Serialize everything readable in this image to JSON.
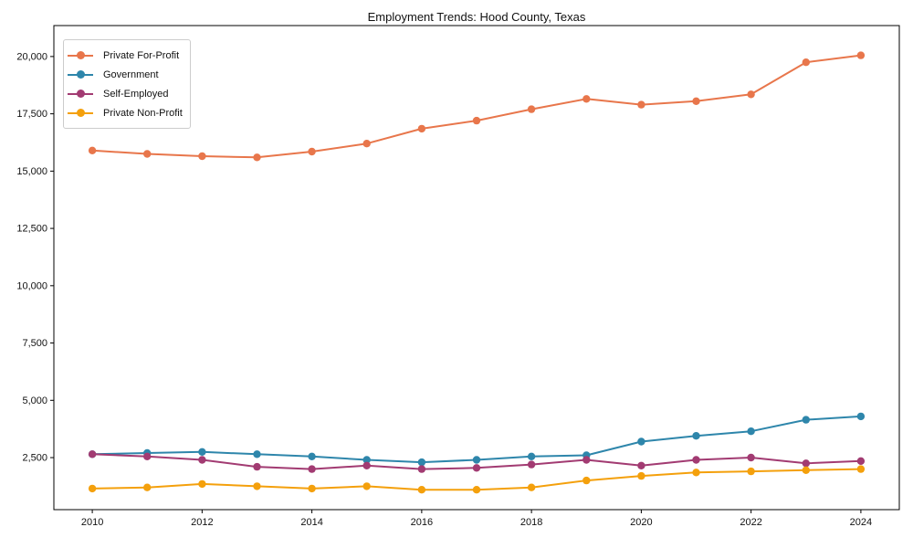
{
  "chart_data": {
    "type": "line",
    "title": "Employment Trends: Hood County, Texas",
    "xlabel": "",
    "ylabel": "",
    "x": [
      2010,
      2011,
      2012,
      2013,
      2014,
      2015,
      2016,
      2017,
      2018,
      2019,
      2020,
      2021,
      2022,
      2023,
      2024
    ],
    "series": [
      {
        "name": "Private For-Profit",
        "color": "#E8764B",
        "values": [
          15900,
          15750,
          15650,
          15600,
          15850,
          16200,
          16850,
          17200,
          17700,
          18150,
          17900,
          18050,
          18350,
          19750,
          20050
        ]
      },
      {
        "name": "Government",
        "color": "#2E86AB",
        "values": [
          2650,
          2700,
          2750,
          2650,
          2550,
          2400,
          2300,
          2400,
          2550,
          2600,
          3200,
          3450,
          3650,
          4150,
          4300
        ]
      },
      {
        "name": "Self-Employed",
        "color": "#A23B72",
        "values": [
          2650,
          2550,
          2400,
          2100,
          2000,
          2150,
          2000,
          2050,
          2200,
          2400,
          2150,
          2400,
          2500,
          2250,
          2350
        ]
      },
      {
        "name": "Private Non-Profit",
        "color": "#F4A00C",
        "values": [
          1150,
          1200,
          1350,
          1250,
          1150,
          1250,
          1100,
          1100,
          1200,
          1500,
          1700,
          1850,
          1900,
          1950,
          2000
        ]
      }
    ],
    "xticks": [
      2010,
      2012,
      2014,
      2016,
      2018,
      2020,
      2022,
      2024
    ],
    "yticks": [
      2500,
      5000,
      7500,
      10000,
      12500,
      15000,
      17500,
      20000
    ],
    "xlim": [
      2009.3,
      2024.7
    ],
    "ylim": [
      230,
      21350
    ],
    "grid": false,
    "legend_position": "upper-left",
    "marker": "circle",
    "spine_color": "#000000"
  }
}
